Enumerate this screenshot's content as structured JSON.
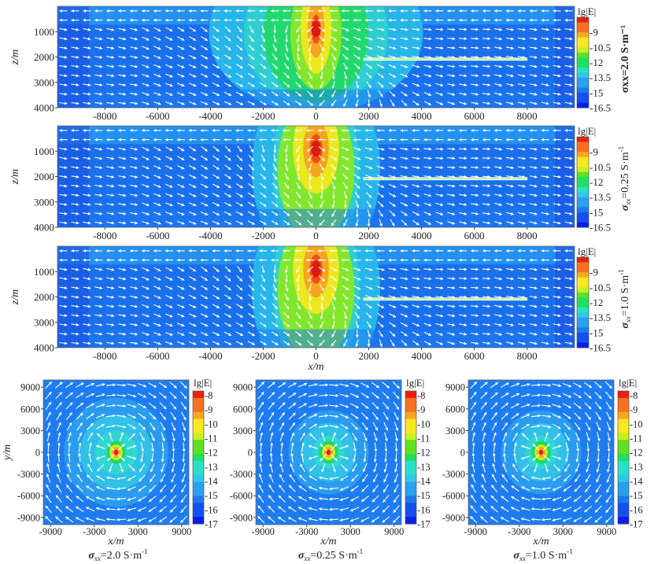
{
  "chart_data": [
    {
      "type": "heatmap",
      "panel": "xz-1",
      "conductivity_label": "σxx=2.0 S·m⁻¹",
      "sigma_sym": "σ",
      "sigma_sub": "xx",
      "sigma_val": "=2.0 S·m",
      "unit_exp": "-1",
      "xlim": [
        -9800,
        9800
      ],
      "ylim": [
        4000,
        0
      ],
      "xticks": [
        "-8000",
        "-6000",
        "-4000",
        "-2000",
        "0",
        "2000",
        "4000",
        "6000",
        "8000"
      ],
      "xtick_values": [
        -8000,
        -6000,
        -4000,
        -2000,
        0,
        2000,
        4000,
        6000,
        8000
      ],
      "yticks": [
        "1000",
        "2000",
        "3000",
        "4000"
      ],
      "ytick_values": [
        1000,
        2000,
        3000,
        4000
      ],
      "ylabel": "z/m",
      "xlabel": "",
      "colorbar": {
        "title": "lg|E|",
        "ticks": [
          "-9",
          "-10.5",
          "-12",
          "-13.5",
          "-15",
          "-16.5"
        ],
        "tick_values": [
          -9,
          -10.5,
          -12,
          -13.5,
          -15,
          -16.5
        ],
        "range": [
          -16.5,
          -7.5
        ]
      },
      "source_x": 0,
      "source_z": 900,
      "peak": -7.5,
      "body": {
        "x": [
          1800,
          8000
        ],
        "z": 2100
      },
      "spread": 1
    },
    {
      "type": "heatmap",
      "panel": "xz-2",
      "sigma_sym": "σ",
      "sigma_sub": "xx",
      "sigma_val": "=0.25 S·m",
      "unit_exp": "-1",
      "xlim": [
        -9800,
        9800
      ],
      "ylim": [
        4000,
        0
      ],
      "xticks": [
        "-8000",
        "-6000",
        "-4000",
        "-2000",
        "0",
        "2000",
        "4000",
        "6000",
        "8000"
      ],
      "xtick_values": [
        -8000,
        -6000,
        -4000,
        -2000,
        0,
        2000,
        4000,
        6000,
        8000
      ],
      "yticks": [
        "1000",
        "2000",
        "3000",
        "4000"
      ],
      "ytick_values": [
        1000,
        2000,
        3000,
        4000
      ],
      "ylabel": "z/m",
      "xlabel": "",
      "colorbar": {
        "title": "lg|E|",
        "ticks": [
          "-9",
          "-10.5",
          "-12",
          "-13.5",
          "-15",
          "-16.5"
        ],
        "tick_values": [
          -9,
          -10.5,
          -12,
          -13.5,
          -15,
          -16.5
        ],
        "range": [
          -16.5,
          -7.5
        ]
      },
      "source_x": 0,
      "source_z": 900,
      "peak": -7.5,
      "body": {
        "x": [
          1800,
          8000
        ],
        "z": 2100
      },
      "spread": 1.5
    },
    {
      "type": "heatmap",
      "panel": "xz-3",
      "sigma_sym": "σ",
      "sigma_sub": "xx",
      "sigma_val": "=1.0 S·m",
      "unit_exp": "-1",
      "xlim": [
        -9800,
        9800
      ],
      "ylim": [
        4000,
        0
      ],
      "xticks": [
        "-8000",
        "-6000",
        "-4000",
        "-2000",
        "0",
        "2000",
        "4000",
        "6000",
        "8000"
      ],
      "xtick_values": [
        -8000,
        -6000,
        -4000,
        -2000,
        0,
        2000,
        4000,
        6000,
        8000
      ],
      "yticks": [
        "1000",
        "2000",
        "3000",
        "4000"
      ],
      "ytick_values": [
        1000,
        2000,
        3000,
        4000
      ],
      "ylabel": "z/m",
      "xlabel": "x/m",
      "colorbar": {
        "title": "lg|E|",
        "ticks": [
          "-9",
          "-10.5",
          "-12",
          "-13.5",
          "-15",
          "-16.5"
        ],
        "tick_values": [
          -9,
          -10.5,
          -12,
          -13.5,
          -15,
          -16.5
        ],
        "range": [
          -16.5,
          -7.5
        ]
      },
      "source_x": 0,
      "source_z": 900,
      "peak": -7.5,
      "body": {
        "x": [
          1800,
          8000
        ],
        "z": 2100
      },
      "spread": 1.5
    },
    {
      "type": "heatmap",
      "panel": "xy-1",
      "sigma_sym": "σ",
      "sigma_sub": "xx",
      "sigma_val": "=2.0 S·m",
      "unit_exp": "-1",
      "xlim": [
        -10000,
        10000
      ],
      "ylim": [
        -10000,
        10000
      ],
      "xticks": [
        "-9000",
        "-3000",
        "3000",
        "9000"
      ],
      "xtick_values": [
        -9000,
        -3000,
        3000,
        9000
      ],
      "yticks": [
        "9000",
        "6000",
        "3000",
        "0",
        "-3000",
        "-6000",
        "-9000"
      ],
      "ytick_values": [
        9000,
        6000,
        3000,
        0,
        -3000,
        -6000,
        -9000
      ],
      "ylabel": "y/m",
      "xlabel": "x/m",
      "colorbar": {
        "title": "lg|E|",
        "ticks": [
          "-8",
          "-9",
          "-10",
          "-11",
          "-12",
          "-13",
          "-14",
          "-15",
          "-16",
          "-17"
        ],
        "tick_values": [
          -8,
          -9,
          -10,
          -11,
          -12,
          -13,
          -14,
          -15,
          -16,
          -17
        ],
        "range": [
          -17,
          -7.7
        ]
      },
      "spread": 1.3
    },
    {
      "type": "heatmap",
      "panel": "xy-2",
      "sigma_sym": "σ",
      "sigma_sub": "xx",
      "sigma_val": "=0.25 S·m",
      "unit_exp": "-1",
      "xlim": [
        -10000,
        10000
      ],
      "ylim": [
        -10000,
        10000
      ],
      "xticks": [
        "-9000",
        "-3000",
        "3000",
        "9000"
      ],
      "xtick_values": [
        -9000,
        -3000,
        3000,
        9000
      ],
      "yticks": [
        "9000",
        "6000",
        "3000",
        "0",
        "-3000",
        "-6000",
        "-9000"
      ],
      "ytick_values": [
        9000,
        6000,
        3000,
        0,
        -3000,
        -6000,
        -9000
      ],
      "ylabel": "",
      "xlabel": "x/m",
      "colorbar": {
        "title": "lg|E|",
        "ticks": [
          "-8",
          "-9",
          "-10",
          "-11",
          "-12",
          "-13",
          "-14",
          "-15",
          "-16",
          "-17"
        ],
        "tick_values": [
          -8,
          -9,
          -10,
          -11,
          -12,
          -13,
          -14,
          -15,
          -16,
          -17
        ],
        "range": [
          -17,
          -7.7
        ]
      },
      "spread": 1
    },
    {
      "type": "heatmap",
      "panel": "xy-3",
      "sigma_sym": "σ",
      "sigma_sub": "xx",
      "sigma_val": "=1.0 S·m",
      "unit_exp": "-1",
      "xlim": [
        -10000,
        10000
      ],
      "ylim": [
        -10000,
        10000
      ],
      "xticks": [
        "-9000",
        "-3000",
        "3000",
        "9000"
      ],
      "xtick_values": [
        -9000,
        -3000,
        3000,
        9000
      ],
      "yticks": [
        "9000",
        "6000",
        "3000",
        "0",
        "-3000",
        "-6000",
        "-9000"
      ],
      "ytick_values": [
        9000,
        6000,
        3000,
        0,
        -3000,
        -6000,
        -9000
      ],
      "ylabel": "",
      "xlabel": "x/m",
      "colorbar": {
        "title": "lg|E|",
        "ticks": [
          "-8",
          "-9",
          "-10",
          "-11",
          "-12",
          "-13",
          "-14",
          "-15",
          "-16",
          "-17"
        ],
        "tick_values": [
          -8,
          -9,
          -10,
          -11,
          -12,
          -13,
          -14,
          -15,
          -16,
          -17
        ],
        "range": [
          -17,
          -7.7
        ]
      },
      "spread": 1
    }
  ],
  "colormap": [
    "#0a1ee8",
    "#1450f0",
    "#1e78f0",
    "#2aa0f0",
    "#30c8e8",
    "#28e0c8",
    "#20e060",
    "#60e020",
    "#c8f020",
    "#f8e820",
    "#f8a820",
    "#f87020",
    "#e82010"
  ]
}
